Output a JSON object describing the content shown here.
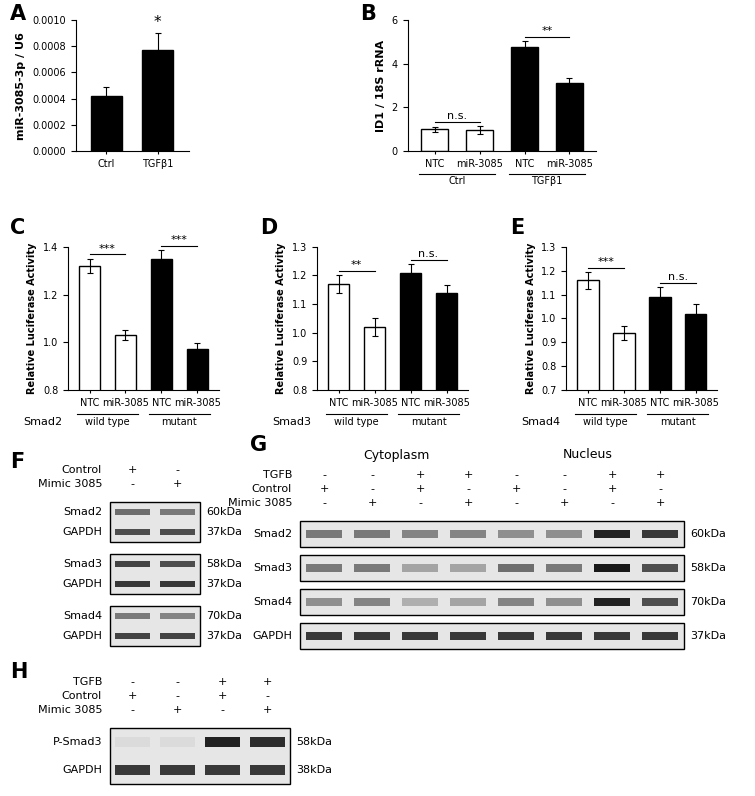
{
  "chart_data": [
    {
      "panel": "A",
      "type": "bar",
      "categories": [
        "Ctrl",
        "TGFβ1"
      ],
      "values": [
        0.00042,
        0.00077
      ],
      "errors": [
        7e-05,
        0.00013
      ],
      "color": "#000000",
      "ylabel": "miR-3085-3p / U6",
      "ylim": [
        0,
        0.001
      ],
      "yticks": [
        {
          "value": 0,
          "label": "0.0000"
        },
        {
          "value": 0.0002,
          "label": "0.0002"
        },
        {
          "value": 0.0004,
          "label": "0.0004"
        },
        {
          "value": 0.0006,
          "label": "0.0006"
        },
        {
          "value": 0.0008,
          "label": "0.0008"
        },
        {
          "value": 0.001,
          "label": "0.0010"
        }
      ],
      "annotations": [
        {
          "category": "TGFβ1",
          "text": "*"
        }
      ]
    },
    {
      "panel": "B",
      "type": "bar",
      "categories": [
        "NTC",
        "miR-3085",
        "NTC",
        "miR-3085"
      ],
      "groups": [
        "Ctrl",
        "Ctrl",
        "TGFβ1",
        "TGFβ1"
      ],
      "values": [
        1.0,
        0.98,
        4.75,
        3.1
      ],
      "errors": [
        0.1,
        0.18,
        0.3,
        0.25
      ],
      "colors": [
        "#ffffff",
        "#ffffff",
        "#000000",
        "#000000"
      ],
      "ylabel": "ID1 / 18S rRNA",
      "ylim": [
        0,
        6
      ],
      "yticks": [
        0,
        2,
        4,
        6
      ],
      "comparisons": [
        {
          "group": "Ctrl",
          "text": "n.s."
        },
        {
          "group": "TGFβ1",
          "text": "**"
        }
      ]
    },
    {
      "panel": "C",
      "type": "bar",
      "gene": "Smad2",
      "categories": [
        "NTC",
        "miR-3085",
        "NTC",
        "miR-3085"
      ],
      "groups": [
        "wild type",
        "wild type",
        "mutant",
        "mutant"
      ],
      "values": [
        1.32,
        1.03,
        1.35,
        0.97
      ],
      "errors": [
        0.03,
        0.02,
        0.035,
        0.025
      ],
      "colors": [
        "#ffffff",
        "#ffffff",
        "#000000",
        "#000000"
      ],
      "ylabel": "Relative Luciferase Activity",
      "ylim": [
        0.8,
        1.4
      ],
      "yticks": [
        {
          "value": 0.8,
          "label": "0.8"
        },
        {
          "value": 1.0,
          "label": "1.0"
        },
        {
          "value": 1.2,
          "label": "1.2"
        },
        {
          "value": 1.4,
          "label": "1.4"
        }
      ],
      "comparisons": [
        {
          "group": "wild type",
          "text": "***"
        },
        {
          "group": "mutant",
          "text": "***"
        }
      ]
    },
    {
      "panel": "D",
      "type": "bar",
      "gene": "Smad3",
      "categories": [
        "NTC",
        "miR-3085",
        "NTC",
        "miR-3085"
      ],
      "groups": [
        "wild type",
        "wild type",
        "mutant",
        "mutant"
      ],
      "values": [
        1.17,
        1.02,
        1.21,
        1.14
      ],
      "errors": [
        0.03,
        0.03,
        0.03,
        0.025
      ],
      "colors": [
        "#ffffff",
        "#ffffff",
        "#000000",
        "#000000"
      ],
      "ylabel": "Relative Luciferase Activity",
      "ylim": [
        0.8,
        1.3
      ],
      "yticks": [
        {
          "value": 0.8,
          "label": "0.8"
        },
        {
          "value": 0.9,
          "label": "0.9"
        },
        {
          "value": 1.0,
          "label": "1.0"
        },
        {
          "value": 1.1,
          "label": "1.1"
        },
        {
          "value": 1.2,
          "label": "1.2"
        },
        {
          "value": 1.3,
          "label": "1.3"
        }
      ],
      "comparisons": [
        {
          "group": "wild type",
          "text": "**"
        },
        {
          "group": "mutant",
          "text": "n.s."
        }
      ]
    },
    {
      "panel": "E",
      "type": "bar",
      "gene": "Smad4",
      "categories": [
        "NTC",
        "miR-3085",
        "NTC",
        "miR-3085"
      ],
      "groups": [
        "wild type",
        "wild type",
        "mutant",
        "mutant"
      ],
      "values": [
        1.16,
        0.94,
        1.09,
        1.02
      ],
      "errors": [
        0.035,
        0.03,
        0.04,
        0.04
      ],
      "colors": [
        "#ffffff",
        "#ffffff",
        "#000000",
        "#000000"
      ],
      "ylabel": "Relative Luciferase Activity",
      "ylim": [
        0.7,
        1.3
      ],
      "yticks": [
        {
          "value": 0.7,
          "label": "0.7"
        },
        {
          "value": 0.8,
          "label": "0.8"
        },
        {
          "value": 0.9,
          "label": "0.9"
        },
        {
          "value": 1.0,
          "label": "1.0"
        },
        {
          "value": 1.1,
          "label": "1.1"
        },
        {
          "value": 1.2,
          "label": "1.2"
        },
        {
          "value": 1.3,
          "label": "1.3"
        }
      ],
      "comparisons": [
        {
          "group": "wild type",
          "text": "***"
        },
        {
          "group": "mutant",
          "text": "n.s."
        }
      ]
    }
  ],
  "blots": [
    {
      "panel": "F",
      "conditions": [
        {
          "label": "Control",
          "signs": [
            "+",
            "-"
          ]
        },
        {
          "label": "Mimic 3085",
          "signs": [
            "-",
            "+"
          ]
        }
      ],
      "blocks": [
        [
          {
            "name": "Smad2",
            "kda": "60kDa",
            "intensity": [
              0.55,
              0.5
            ]
          },
          {
            "name": "GAPDH",
            "kda": "37kDa",
            "intensity": [
              0.7,
              0.7
            ]
          }
        ],
        [
          {
            "name": "Smad3",
            "kda": "58kDa",
            "intensity": [
              0.75,
              0.7
            ]
          },
          {
            "name": "GAPDH",
            "kda": "37kDa",
            "intensity": [
              0.8,
              0.8
            ]
          }
        ],
        [
          {
            "name": "Smad4",
            "kda": "70kDa",
            "intensity": [
              0.5,
              0.45
            ]
          },
          {
            "name": "GAPDH",
            "kda": "37kDa",
            "intensity": [
              0.75,
              0.75
            ]
          }
        ]
      ]
    },
    {
      "panel": "G",
      "sections": [
        "Cytoplasm",
        "Nucleus"
      ],
      "conditions": [
        {
          "label": "TGFB",
          "signs": [
            "-",
            "-",
            "+",
            "+",
            "-",
            "-",
            "+",
            "+"
          ]
        },
        {
          "label": "Control",
          "signs": [
            "+",
            "-",
            "+",
            "-",
            "+",
            "-",
            "+",
            "-"
          ]
        },
        {
          "label": "Mimic 3085",
          "signs": [
            "-",
            "+",
            "-",
            "+",
            "-",
            "+",
            "-",
            "+"
          ]
        }
      ],
      "blocks": [
        [
          {
            "name": "Smad2",
            "kda": "60kDa",
            "intensity": [
              0.5,
              0.5,
              0.45,
              0.45,
              0.4,
              0.4,
              0.9,
              0.8
            ]
          }
        ],
        [
          {
            "name": "Smad3",
            "kda": "58kDa",
            "intensity": [
              0.5,
              0.5,
              0.3,
              0.3,
              0.55,
              0.5,
              0.95,
              0.7
            ]
          }
        ],
        [
          {
            "name": "Smad4",
            "kda": "70kDa",
            "intensity": [
              0.4,
              0.45,
              0.25,
              0.3,
              0.45,
              0.4,
              0.9,
              0.7
            ]
          }
        ],
        [
          {
            "name": "GAPDH",
            "kda": "37kDa",
            "intensity": [
              0.8,
              0.8,
              0.8,
              0.8,
              0.8,
              0.8,
              0.8,
              0.8
            ]
          }
        ]
      ]
    },
    {
      "panel": "H",
      "conditions": [
        {
          "label": "TGFB",
          "signs": [
            "-",
            "-",
            "+",
            "+"
          ]
        },
        {
          "label": "Control",
          "signs": [
            "+",
            "-",
            "+",
            "-"
          ]
        },
        {
          "label": "Mimic 3085",
          "signs": [
            "-",
            "+",
            "-",
            "+"
          ]
        }
      ],
      "blocks": [
        [
          {
            "name": "P-Smad3",
            "kda": "58kDa",
            "intensity": [
              0.05,
              0.05,
              0.9,
              0.85
            ]
          },
          {
            "name": "GAPDH",
            "kda": "38kDa",
            "intensity": [
              0.8,
              0.8,
              0.8,
              0.8
            ]
          }
        ]
      ]
    }
  ]
}
